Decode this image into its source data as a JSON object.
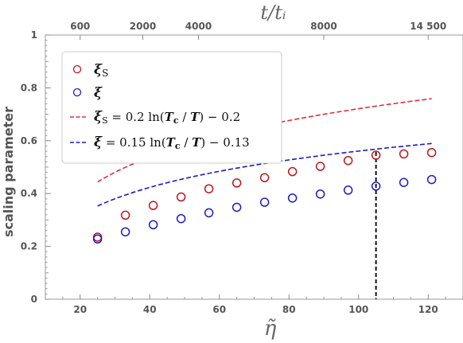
{
  "chart_data": {
    "type": "scatter",
    "xlabel": "η̃",
    "x2label": "t/tᵢ",
    "ylabel": "scaling parameter",
    "xlim": [
      10,
      130
    ],
    "ylim": [
      0,
      1
    ],
    "x_ticks": [
      20,
      40,
      60,
      80,
      100,
      120
    ],
    "y_ticks": [
      0,
      0.2,
      0.4,
      0.6,
      0.8,
      1
    ],
    "y_tick_labels": [
      "0",
      "0.2",
      "0.4",
      "0.6",
      "0.8",
      "1"
    ],
    "top_ticks": [
      {
        "label": "600",
        "x": 20
      },
      {
        "label": "2000",
        "x": 38
      },
      {
        "label": "4000",
        "x": 54
      },
      {
        "label": "8000",
        "x": 90
      },
      {
        "label": "14 500",
        "x": 120
      }
    ],
    "vline_x": 105,
    "series": [
      {
        "name": "ξs",
        "name_main": "ξ",
        "name_sub": "S",
        "color": "#c0141c",
        "marker": "open-circle",
        "x": [
          25,
          33,
          41,
          49,
          57,
          65,
          73,
          81,
          89,
          97,
          105,
          113,
          121
        ],
        "y": [
          0.235,
          0.318,
          0.355,
          0.387,
          0.418,
          0.44,
          0.46,
          0.483,
          0.503,
          0.525,
          0.545,
          0.55,
          0.555
        ]
      },
      {
        "name": "ξ",
        "name_main": "ξ",
        "name_sub": "",
        "color": "#1c1cc8",
        "marker": "open-circle",
        "x": [
          25,
          33,
          41,
          49,
          57,
          65,
          73,
          81,
          89,
          97,
          105,
          113,
          121
        ],
        "y": [
          0.228,
          0.255,
          0.282,
          0.305,
          0.327,
          0.348,
          0.367,
          0.383,
          0.398,
          0.413,
          0.428,
          0.442,
          0.453
        ]
      }
    ],
    "fits": [
      {
        "color": "#e0303a",
        "dash": "dashed",
        "a": 0.2,
        "b": -0.2,
        "label_sym": "ξ",
        "label_sub": "S",
        "label_rhs": " = 0.2 ln(",
        "label_tc": "T",
        "label_tc_sub": "c",
        "label_mid": " / ",
        "label_t": "T",
        "label_tail": ") − 0.2"
      },
      {
        "color": "#1c1cc8",
        "dash": "dashed",
        "a": 0.15,
        "b": -0.13,
        "label_sym": "ξ",
        "label_sub": "",
        "label_rhs": " = 0.15 ln(",
        "label_tc": "T",
        "label_tc_sub": "c",
        "label_mid": " / ",
        "label_t": "T",
        "label_tail": ") − 0.13"
      }
    ]
  }
}
